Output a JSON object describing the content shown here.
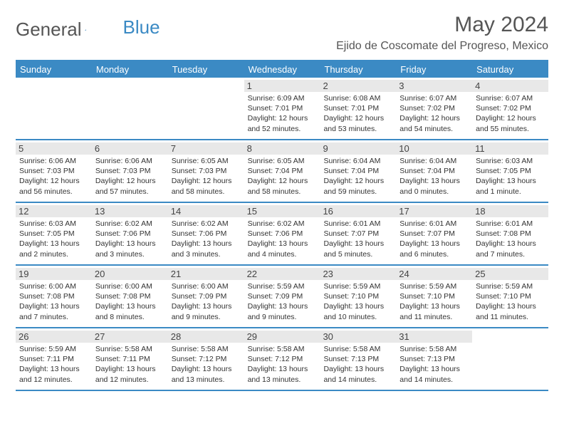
{
  "logo": {
    "text1": "General",
    "text2": "Blue"
  },
  "title": "May 2024",
  "location": "Ejido de Coscomate del Progreso, Mexico",
  "colors": {
    "brand": "#3b8ac4",
    "dayNumBg": "#e8e8e8",
    "text": "#333333",
    "heading": "#555555"
  },
  "dayNames": [
    "Sunday",
    "Monday",
    "Tuesday",
    "Wednesday",
    "Thursday",
    "Friday",
    "Saturday"
  ],
  "weeks": [
    [
      null,
      null,
      null,
      {
        "n": "1",
        "sr": "6:09 AM",
        "ss": "7:01 PM",
        "dl": "12 hours and 52 minutes."
      },
      {
        "n": "2",
        "sr": "6:08 AM",
        "ss": "7:01 PM",
        "dl": "12 hours and 53 minutes."
      },
      {
        "n": "3",
        "sr": "6:07 AM",
        "ss": "7:02 PM",
        "dl": "12 hours and 54 minutes."
      },
      {
        "n": "4",
        "sr": "6:07 AM",
        "ss": "7:02 PM",
        "dl": "12 hours and 55 minutes."
      }
    ],
    [
      {
        "n": "5",
        "sr": "6:06 AM",
        "ss": "7:03 PM",
        "dl": "12 hours and 56 minutes."
      },
      {
        "n": "6",
        "sr": "6:06 AM",
        "ss": "7:03 PM",
        "dl": "12 hours and 57 minutes."
      },
      {
        "n": "7",
        "sr": "6:05 AM",
        "ss": "7:03 PM",
        "dl": "12 hours and 58 minutes."
      },
      {
        "n": "8",
        "sr": "6:05 AM",
        "ss": "7:04 PM",
        "dl": "12 hours and 58 minutes."
      },
      {
        "n": "9",
        "sr": "6:04 AM",
        "ss": "7:04 PM",
        "dl": "12 hours and 59 minutes."
      },
      {
        "n": "10",
        "sr": "6:04 AM",
        "ss": "7:04 PM",
        "dl": "13 hours and 0 minutes."
      },
      {
        "n": "11",
        "sr": "6:03 AM",
        "ss": "7:05 PM",
        "dl": "13 hours and 1 minute."
      }
    ],
    [
      {
        "n": "12",
        "sr": "6:03 AM",
        "ss": "7:05 PM",
        "dl": "13 hours and 2 minutes."
      },
      {
        "n": "13",
        "sr": "6:02 AM",
        "ss": "7:06 PM",
        "dl": "13 hours and 3 minutes."
      },
      {
        "n": "14",
        "sr": "6:02 AM",
        "ss": "7:06 PM",
        "dl": "13 hours and 3 minutes."
      },
      {
        "n": "15",
        "sr": "6:02 AM",
        "ss": "7:06 PM",
        "dl": "13 hours and 4 minutes."
      },
      {
        "n": "16",
        "sr": "6:01 AM",
        "ss": "7:07 PM",
        "dl": "13 hours and 5 minutes."
      },
      {
        "n": "17",
        "sr": "6:01 AM",
        "ss": "7:07 PM",
        "dl": "13 hours and 6 minutes."
      },
      {
        "n": "18",
        "sr": "6:01 AM",
        "ss": "7:08 PM",
        "dl": "13 hours and 7 minutes."
      }
    ],
    [
      {
        "n": "19",
        "sr": "6:00 AM",
        "ss": "7:08 PM",
        "dl": "13 hours and 7 minutes."
      },
      {
        "n": "20",
        "sr": "6:00 AM",
        "ss": "7:08 PM",
        "dl": "13 hours and 8 minutes."
      },
      {
        "n": "21",
        "sr": "6:00 AM",
        "ss": "7:09 PM",
        "dl": "13 hours and 9 minutes."
      },
      {
        "n": "22",
        "sr": "5:59 AM",
        "ss": "7:09 PM",
        "dl": "13 hours and 9 minutes."
      },
      {
        "n": "23",
        "sr": "5:59 AM",
        "ss": "7:10 PM",
        "dl": "13 hours and 10 minutes."
      },
      {
        "n": "24",
        "sr": "5:59 AM",
        "ss": "7:10 PM",
        "dl": "13 hours and 11 minutes."
      },
      {
        "n": "25",
        "sr": "5:59 AM",
        "ss": "7:10 PM",
        "dl": "13 hours and 11 minutes."
      }
    ],
    [
      {
        "n": "26",
        "sr": "5:59 AM",
        "ss": "7:11 PM",
        "dl": "13 hours and 12 minutes."
      },
      {
        "n": "27",
        "sr": "5:58 AM",
        "ss": "7:11 PM",
        "dl": "13 hours and 12 minutes."
      },
      {
        "n": "28",
        "sr": "5:58 AM",
        "ss": "7:12 PM",
        "dl": "13 hours and 13 minutes."
      },
      {
        "n": "29",
        "sr": "5:58 AM",
        "ss": "7:12 PM",
        "dl": "13 hours and 13 minutes."
      },
      {
        "n": "30",
        "sr": "5:58 AM",
        "ss": "7:13 PM",
        "dl": "13 hours and 14 minutes."
      },
      {
        "n": "31",
        "sr": "5:58 AM",
        "ss": "7:13 PM",
        "dl": "13 hours and 14 minutes."
      },
      null
    ]
  ],
  "labels": {
    "sunrise": "Sunrise:",
    "sunset": "Sunset:",
    "daylight": "Daylight:"
  }
}
